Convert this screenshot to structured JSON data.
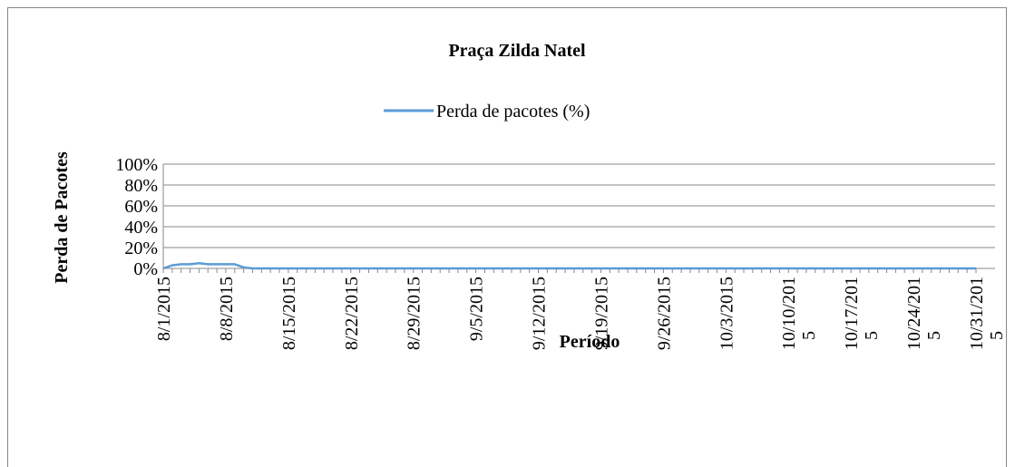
{
  "chart_data": {
    "type": "line",
    "title": "Praça Zilda Natel",
    "x_label": "Período",
    "y_label": "Perda de Pacotes",
    "categories": [
      "8/1/2015",
      null,
      null,
      null,
      null,
      null,
      null,
      "8/8/2015",
      null,
      null,
      null,
      null,
      null,
      null,
      "8/15/2015",
      null,
      null,
      null,
      null,
      null,
      null,
      "8/22/2015",
      null,
      null,
      null,
      null,
      null,
      null,
      "8/29/2015",
      null,
      null,
      null,
      null,
      null,
      null,
      "9/5/2015",
      null,
      null,
      null,
      null,
      null,
      null,
      "9/12/2015",
      null,
      null,
      null,
      null,
      null,
      null,
      "9/19/2015",
      null,
      null,
      null,
      null,
      null,
      null,
      "9/26/2015",
      null,
      null,
      null,
      null,
      null,
      null,
      "10/3/2015",
      null,
      null,
      null,
      null,
      null,
      null,
      "10/10/2015",
      null,
      null,
      null,
      null,
      null,
      null,
      "10/17/2015",
      null,
      null,
      null,
      null,
      null,
      null,
      "10/24/2015",
      null,
      null,
      null,
      null,
      null,
      null,
      "10/31/2015"
    ],
    "series": [
      {
        "name": "Perda de pacotes (%)",
        "color": "#5b9bd5",
        "values": [
          0,
          3,
          4,
          4,
          5,
          4,
          4,
          4,
          4,
          1,
          0,
          0,
          0,
          0,
          0,
          0,
          0,
          0,
          0,
          0,
          0,
          0,
          0,
          0,
          0,
          0,
          0,
          0,
          0,
          0,
          0,
          0,
          0,
          0,
          0,
          0,
          0,
          0,
          0,
          0,
          0,
          0,
          0,
          0,
          0,
          0,
          0,
          0,
          0,
          0,
          0,
          0,
          0,
          0,
          0,
          0,
          0,
          0,
          0,
          0,
          0,
          0,
          0,
          0,
          0,
          0,
          0,
          0,
          0,
          0,
          0,
          0,
          0,
          0,
          0,
          0,
          0,
          0,
          0,
          0,
          0,
          0,
          0,
          0,
          0,
          0,
          0,
          0,
          0,
          0,
          0,
          0
        ]
      }
    ],
    "ylim": [
      0,
      100
    ],
    "yticks": [
      {
        "value": 0,
        "label": "0%"
      },
      {
        "value": 20,
        "label": "20%"
      },
      {
        "value": 40,
        "label": "40%"
      },
      {
        "value": 60,
        "label": "60%"
      },
      {
        "value": 80,
        "label": "80%"
      },
      {
        "value": 100,
        "label": "100%"
      }
    ],
    "grid": true,
    "legend": "top"
  }
}
